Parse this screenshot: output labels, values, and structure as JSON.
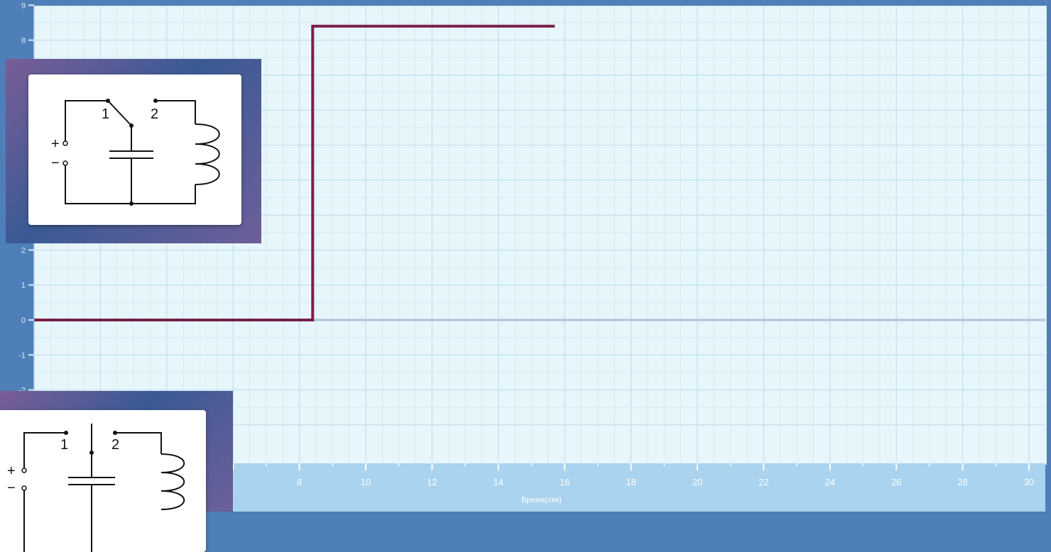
{
  "chart_data": {
    "type": "line",
    "title": "",
    "xlabel": "Время(сек)",
    "ylabel": "",
    "xlim": [
      0,
      30
    ],
    "ylim": [
      -3,
      9
    ],
    "x_ticks": [
      8,
      10,
      12,
      14,
      16,
      18,
      20,
      22,
      24,
      26,
      28,
      30
    ],
    "x_tick_labels": [
      "8",
      "10",
      "12",
      "14",
      "16",
      "18",
      "20",
      "22",
      "24",
      "26",
      "28",
      "30"
    ],
    "y_ticks": [
      -2,
      -1,
      0,
      1,
      2,
      8,
      9
    ],
    "y_tick_labels": [
      "-2",
      "-1",
      "0",
      "1",
      "2",
      "8",
      "9"
    ],
    "grid": true,
    "series": [
      {
        "x": [
          0,
          8.4,
          8.4,
          15.7
        ],
        "y": [
          0,
          0,
          8.4,
          8.4
        ],
        "color": "#7a1f4e"
      }
    ]
  },
  "colors": {
    "plot_bg": "#e7f6fb",
    "grid_minor": "#d3ebf2",
    "grid_major": "#b9dbe8",
    "axis_strip": "#a9d3ee",
    "line": "#7a1f4e",
    "zero_line": "#a9c4dc"
  },
  "circuits": {
    "top": {
      "plus": "+",
      "minus": "−",
      "switch_pos_1": "1",
      "switch_pos_2": "2"
    },
    "bottom": {
      "plus": "+",
      "minus": "−",
      "switch_pos_1": "1",
      "switch_pos_2": "2"
    }
  }
}
